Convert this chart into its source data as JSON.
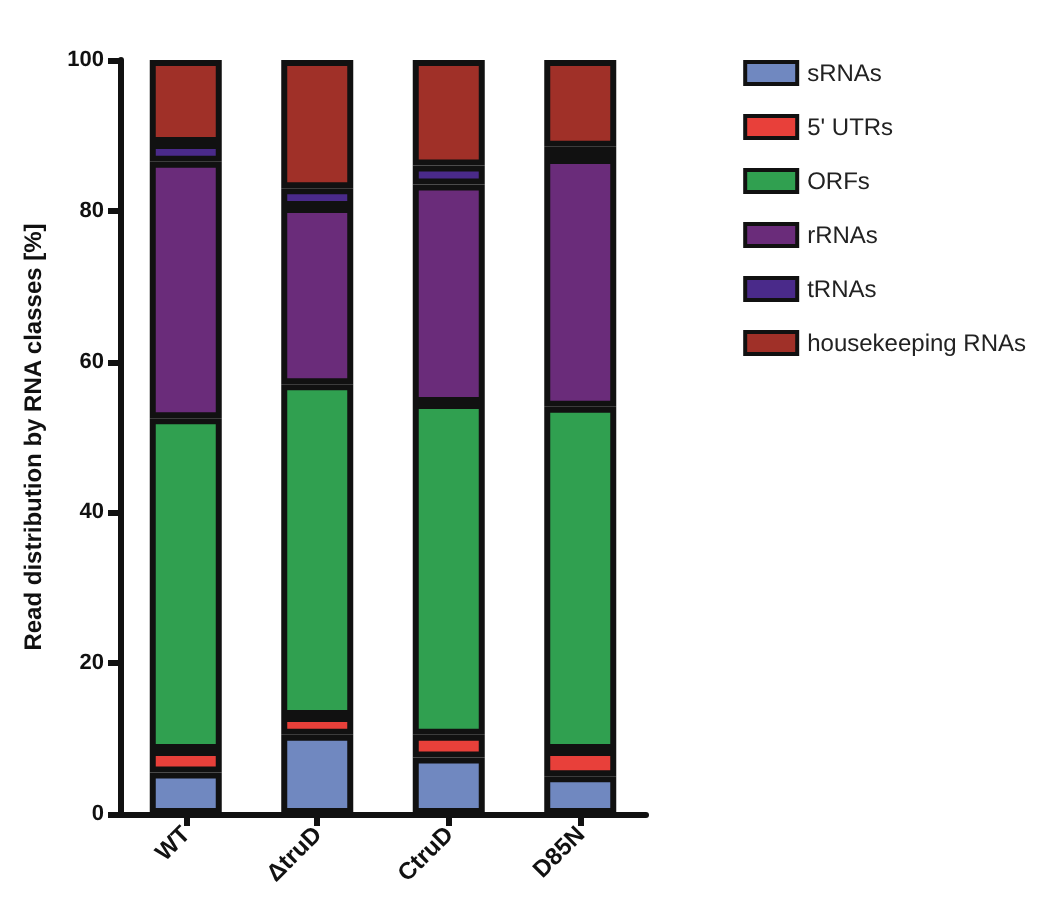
{
  "chart_data": {
    "type": "bar",
    "stacked": true,
    "ylabel": "Read distribution by RNA classes [%]",
    "categories": [
      "WT",
      "ΔtruD",
      "CtruD",
      "D85N"
    ],
    "series": [
      {
        "name": "sRNAs",
        "color": "#7088c0",
        "values": [
          5.5,
          10.5,
          7.5,
          5
        ]
      },
      {
        "name": "5' UTRs",
        "color": "#e8403a",
        "values": [
          3,
          2.5,
          3,
          3.5
        ]
      },
      {
        "name": "ORFs",
        "color": "#30a050",
        "values": [
          44,
          44,
          44,
          45.5
        ]
      },
      {
        "name": "rRNAs",
        "color": "#6a2c7a",
        "values": [
          34,
          23.5,
          29,
          33
        ]
      },
      {
        "name": "tRNAs",
        "color": "#4a2a8a",
        "values": [
          2.5,
          2.5,
          2.5,
          1.5
        ]
      },
      {
        "name": "housekeeping RNAs",
        "color": "#a03028",
        "values": [
          11,
          17,
          14,
          11.5
        ]
      }
    ],
    "ylim": [
      0,
      100
    ],
    "yticks": [
      0,
      20,
      40,
      60,
      80,
      100
    ],
    "grid": false,
    "legend": "right"
  }
}
